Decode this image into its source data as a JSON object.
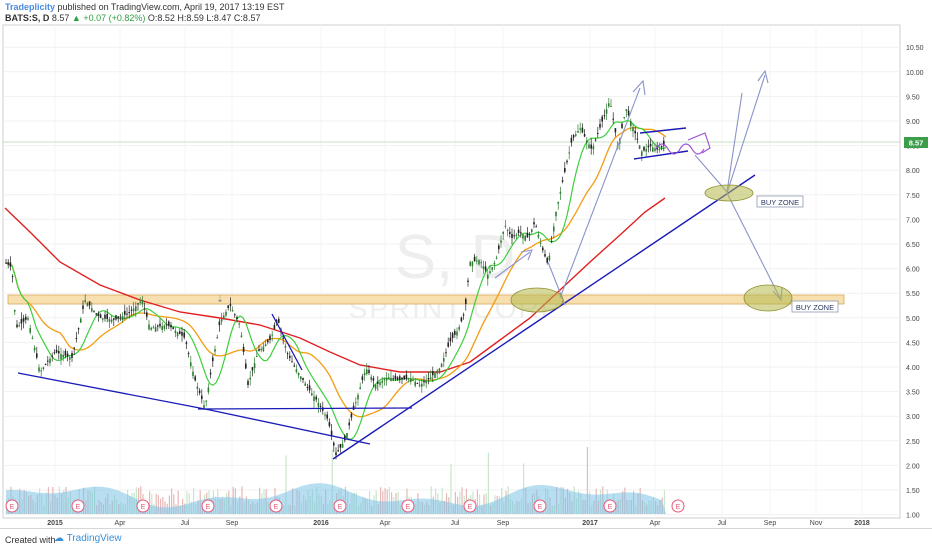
{
  "header": {
    "author": "Tradeplicity",
    "published": " published on TradingView.com, April 19, 2017 13:19 EST",
    "symbol": "BATS:S, D",
    "last": "8.57",
    "change": "▲ +0.07 (+0.82%)",
    "ohlc": "O:8.52 H:8.59 L:8.47 C:8.57"
  },
  "footer": {
    "created": "Created with",
    "brand": "TradingView"
  },
  "chart_data": {
    "type": "line",
    "watermark": {
      "symbol": "S, D",
      "name": "SPRINT CORP"
    },
    "x_ticks": [
      "2015",
      "Apr",
      "Jul",
      "Sep",
      "2016",
      "Apr",
      "Jul",
      "Sep",
      "2017",
      "Apr",
      "Jul",
      "Sep",
      "Nov",
      "2018"
    ],
    "y_ticks": [
      "10.50",
      "10.00",
      "9.50",
      "9.00",
      "8.50",
      "8.00",
      "7.50",
      "7.00",
      "6.50",
      "6.00",
      "5.50",
      "5.00",
      "4.50",
      "4.00",
      "3.50",
      "3.00",
      "2.50",
      "2.00",
      "1.50",
      "1.00"
    ],
    "ylim": [
      1.0,
      10.6
    ],
    "last_price_label": "8.57",
    "annotations": [
      "BUY ZONE",
      "BUY ZONE"
    ],
    "earnings_marker": "E",
    "colors": {
      "price": "#222222",
      "ma_short": "#3ccf3c",
      "ma_mid": "#f39c12",
      "ma_long": "#e02020",
      "trendline": "#1a1ab8",
      "arrow": "#8a93c9",
      "zone_band": "#f7dfb0",
      "ellipse": "#b5b84a",
      "volume": "#7ec3e8",
      "earnings": "#e8577a"
    }
  }
}
